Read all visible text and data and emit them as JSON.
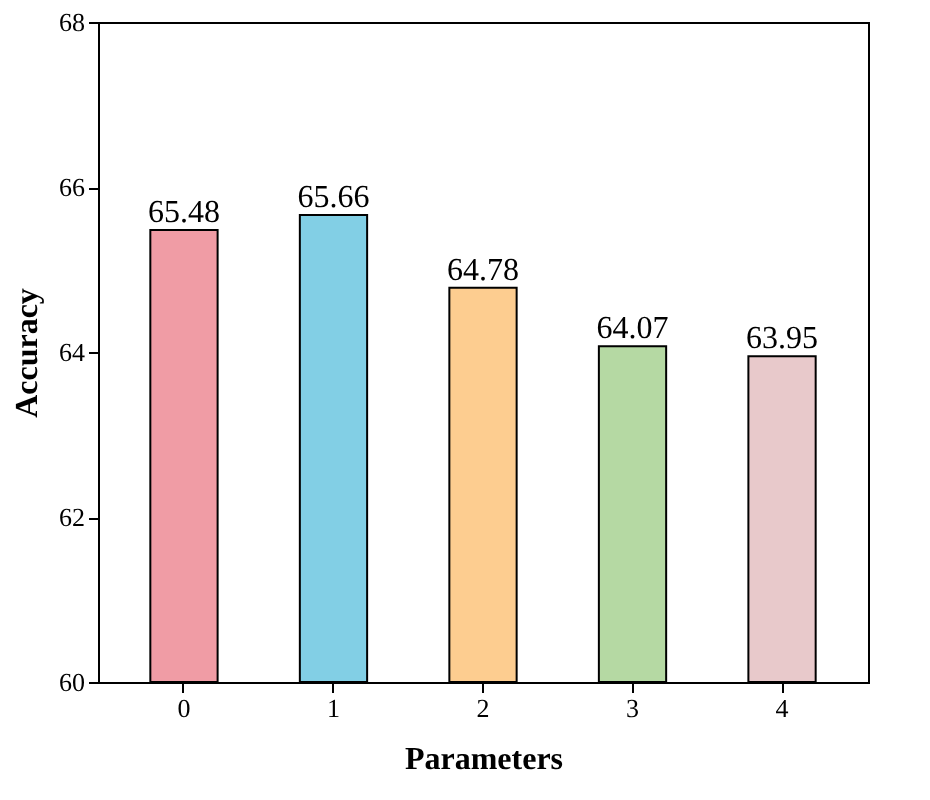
{
  "chart_data": {
    "type": "bar",
    "xlabel": "Parameters",
    "ylabel": "Accuracy",
    "categories": [
      "0",
      "1",
      "2",
      "3",
      "4"
    ],
    "values": [
      65.48,
      65.66,
      64.78,
      64.07,
      63.95
    ],
    "colors": [
      "#f09ca5",
      "#82cfe5",
      "#fdcd90",
      "#b5d9a3",
      "#e8c9cb"
    ],
    "ylim": [
      60,
      68
    ],
    "yticks": [
      60,
      62,
      64,
      66,
      68
    ],
    "grid": false,
    "data_labels": true
  }
}
